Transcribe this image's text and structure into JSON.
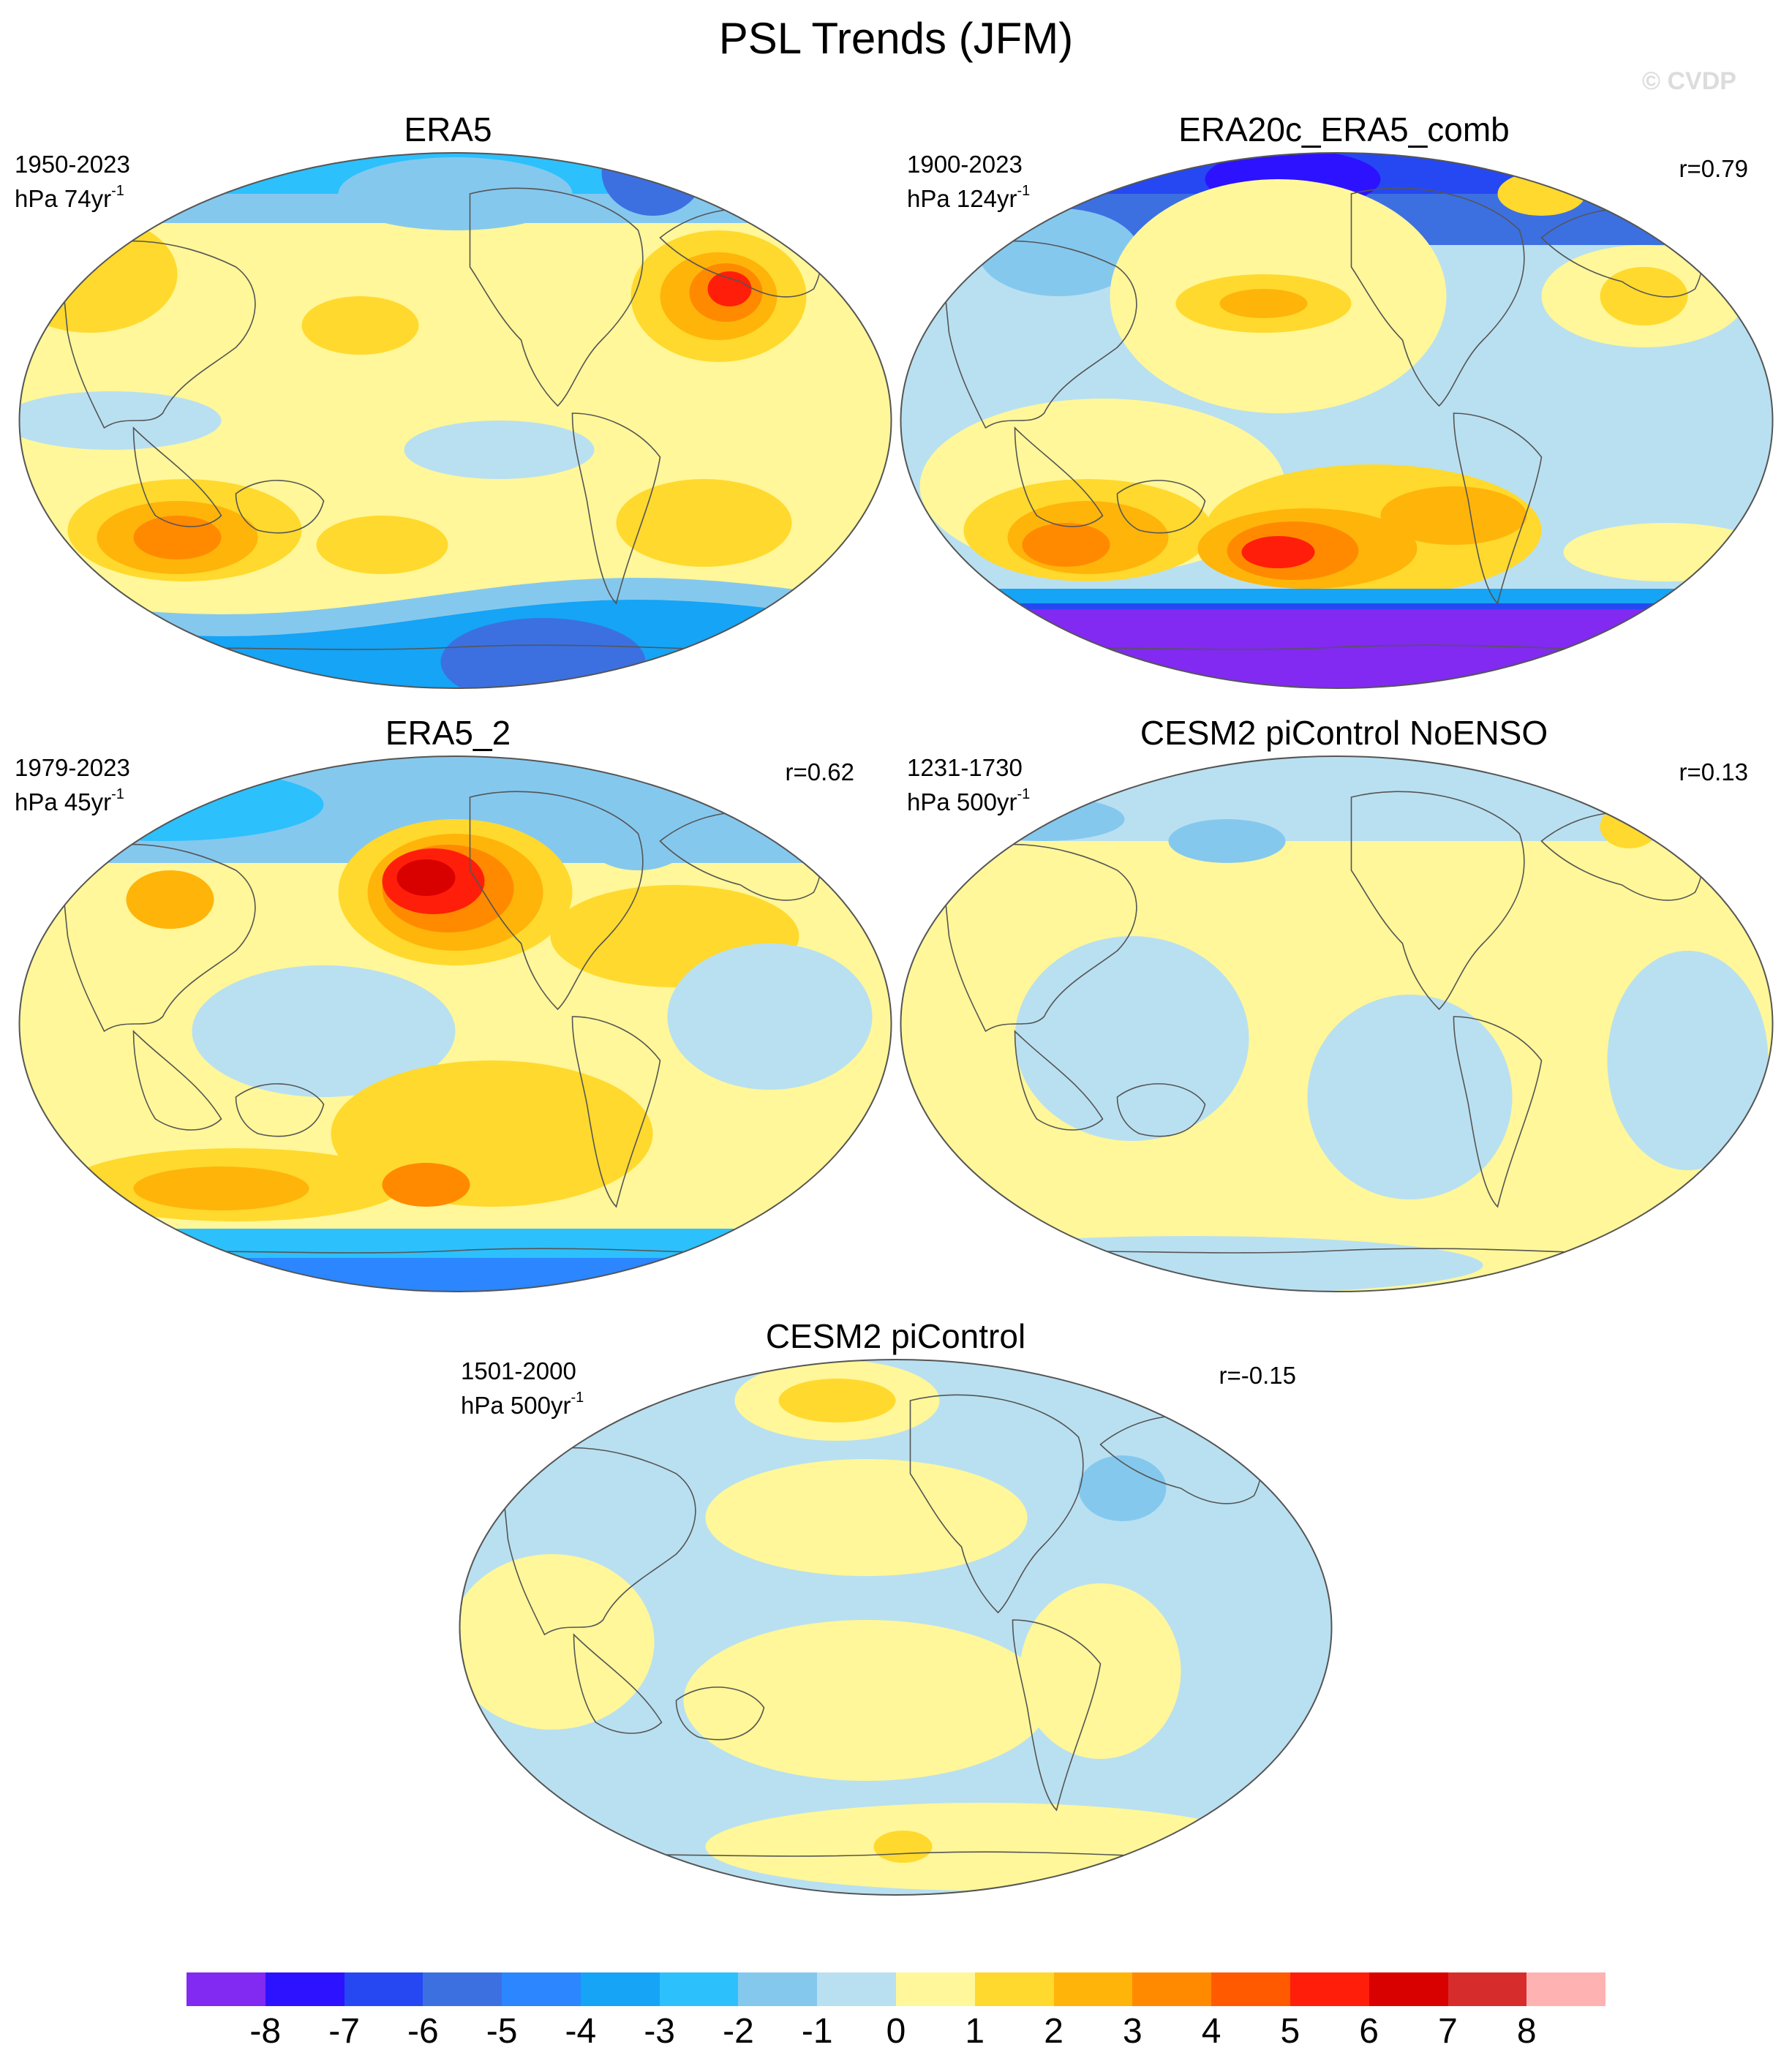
{
  "title": "PSL Trends (JFM)",
  "watermark": "© CVDP",
  "panels": [
    {
      "title": "ERA5",
      "period": "1950-2023",
      "units_base": "hPa 74yr",
      "units_exp": "-1",
      "corr": "",
      "pattern": "era5"
    },
    {
      "title": "ERA20c_ERA5_comb",
      "period": "1900-2023",
      "units_base": "hPa 124yr",
      "units_exp": "-1",
      "corr": "r=0.79",
      "pattern": "era20c"
    },
    {
      "title": "ERA5_2",
      "period": "1979-2023",
      "units_base": "hPa 45yr",
      "units_exp": "-1",
      "corr": "r=0.62",
      "pattern": "era5_2"
    },
    {
      "title": "CESM2 piControl NoENSO",
      "period": "1231-1730",
      "units_base": "hPa 500yr",
      "units_exp": "-1",
      "corr": "r=0.13",
      "pattern": "noenso"
    },
    {
      "title": "CESM2 piControl",
      "period": "1501-2000",
      "units_base": "hPa 500yr",
      "units_exp": "-1",
      "corr": "r=-0.15",
      "pattern": "picontrol"
    }
  ],
  "colorbar": {
    "labels": [
      "-8",
      "-7",
      "-6",
      "-5",
      "-4",
      "-3",
      "-2",
      "-1",
      "0",
      "1",
      "2",
      "3",
      "4",
      "5",
      "6",
      "7",
      "8"
    ],
    "colors": [
      "#8229f2",
      "#2d12ff",
      "#2548f2",
      "#3c70e1",
      "#2b86ff",
      "#15a4f6",
      "#2cc0fd",
      "#85c8ee",
      "#b9e0f1",
      "#fff799",
      "#ffd92d",
      "#ffb40a",
      "#ff8a00",
      "#ff5a00",
      "#ff1e0a",
      "#d90000",
      "#d72c2c",
      "#ffb2b2"
    ]
  }
}
